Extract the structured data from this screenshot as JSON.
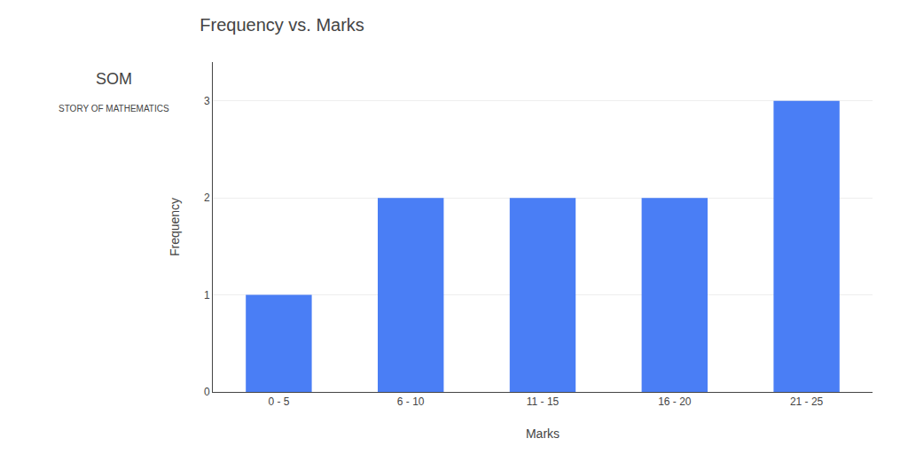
{
  "chart_data": {
    "type": "bar",
    "title": "Frequency vs. Marks",
    "xlabel": "Marks",
    "ylabel": "Frequency",
    "categories": [
      "0 - 5",
      "6 - 10",
      "11 - 15",
      "16 - 20",
      "21 - 25"
    ],
    "values": [
      1,
      2,
      2,
      2,
      3
    ],
    "color": "#4a7ef5",
    "ylim": [
      0,
      3.4
    ],
    "yticks": [
      0,
      1,
      2,
      3
    ],
    "grid": true,
    "annotations": [
      "SOM",
      "STORY OF MATHEMATICS"
    ]
  }
}
